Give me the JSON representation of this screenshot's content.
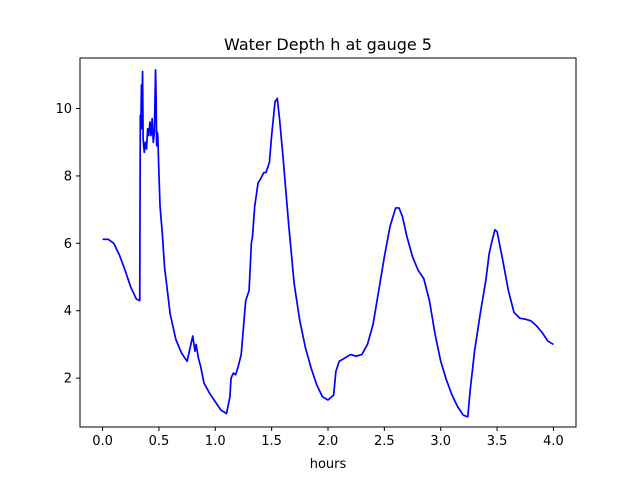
{
  "chart_data": {
    "type": "line",
    "title": "Water Depth h at gauge 5",
    "xlabel": "hours",
    "ylabel": "",
    "xlim": [
      -0.2,
      4.2
    ],
    "ylim": [
      0.55,
      11.5
    ],
    "xticks": [
      0.0,
      0.5,
      1.0,
      1.5,
      2.0,
      2.5,
      3.0,
      3.5,
      4.0
    ],
    "xtick_labels": [
      "0.0",
      "0.5",
      "1.0",
      "1.5",
      "2.0",
      "2.5",
      "3.0",
      "3.5",
      "4.0"
    ],
    "yticks": [
      2,
      4,
      6,
      8,
      10
    ],
    "ytick_labels": [
      "2",
      "4",
      "6",
      "8",
      "10"
    ],
    "grid": false,
    "line_color": "#0000ff",
    "series": [
      {
        "name": "",
        "x": [
          0.0,
          0.05,
          0.1,
          0.15,
          0.2,
          0.25,
          0.3,
          0.33,
          0.335,
          0.34,
          0.345,
          0.35,
          0.355,
          0.36,
          0.37,
          0.38,
          0.39,
          0.4,
          0.41,
          0.42,
          0.43,
          0.44,
          0.45,
          0.46,
          0.47,
          0.475,
          0.48,
          0.485,
          0.49,
          0.5,
          0.51,
          0.53,
          0.55,
          0.6,
          0.65,
          0.7,
          0.75,
          0.8,
          0.82,
          0.825,
          0.83,
          0.85,
          0.87,
          0.9,
          0.95,
          1.0,
          1.05,
          1.1,
          1.13,
          1.14,
          1.16,
          1.18,
          1.2,
          1.23,
          1.25,
          1.27,
          1.3,
          1.32,
          1.33,
          1.35,
          1.38,
          1.4,
          1.43,
          1.45,
          1.48,
          1.5,
          1.53,
          1.55,
          1.57,
          1.6,
          1.65,
          1.7,
          1.75,
          1.8,
          1.85,
          1.9,
          1.95,
          2.0,
          2.05,
          2.07,
          2.1,
          2.15,
          2.2,
          2.25,
          2.3,
          2.35,
          2.4,
          2.45,
          2.5,
          2.55,
          2.6,
          2.63,
          2.66,
          2.7,
          2.75,
          2.8,
          2.85,
          2.9,
          2.95,
          3.0,
          3.05,
          3.1,
          3.15,
          3.2,
          3.24,
          3.26,
          3.3,
          3.35,
          3.4,
          3.43,
          3.45,
          3.48,
          3.5,
          3.55,
          3.6,
          3.65,
          3.7,
          3.75,
          3.8,
          3.85,
          3.9,
          3.95,
          4.0
        ],
        "y": [
          6.12,
          6.12,
          6.0,
          5.65,
          5.2,
          4.7,
          4.35,
          4.3,
          9.8,
          9.5,
          10.7,
          9.4,
          11.1,
          9.1,
          8.7,
          9.0,
          8.8,
          9.4,
          9.2,
          9.6,
          9.2,
          9.7,
          9.0,
          9.3,
          11.15,
          10.4,
          8.9,
          9.3,
          9.2,
          8.1,
          7.1,
          6.3,
          5.3,
          3.9,
          3.15,
          2.75,
          2.5,
          3.25,
          2.8,
          2.9,
          3.0,
          2.6,
          2.35,
          1.85,
          1.55,
          1.3,
          1.05,
          0.95,
          1.45,
          2.0,
          2.15,
          2.1,
          2.3,
          2.7,
          3.5,
          4.3,
          4.6,
          6.0,
          6.2,
          7.1,
          7.8,
          7.9,
          8.1,
          8.1,
          8.4,
          9.2,
          10.2,
          10.3,
          9.7,
          8.6,
          6.6,
          4.8,
          3.7,
          2.9,
          2.3,
          1.8,
          1.45,
          1.35,
          1.5,
          2.2,
          2.5,
          2.6,
          2.7,
          2.65,
          2.7,
          3.0,
          3.6,
          4.6,
          5.6,
          6.5,
          7.05,
          7.05,
          6.8,
          6.2,
          5.6,
          5.2,
          4.95,
          4.3,
          3.3,
          2.5,
          1.95,
          1.5,
          1.15,
          0.9,
          0.85,
          1.6,
          2.8,
          3.9,
          4.9,
          5.7,
          6.0,
          6.4,
          6.35,
          5.5,
          4.6,
          3.95,
          3.78,
          3.75,
          3.7,
          3.55,
          3.35,
          3.1,
          3.0
        ]
      }
    ]
  }
}
